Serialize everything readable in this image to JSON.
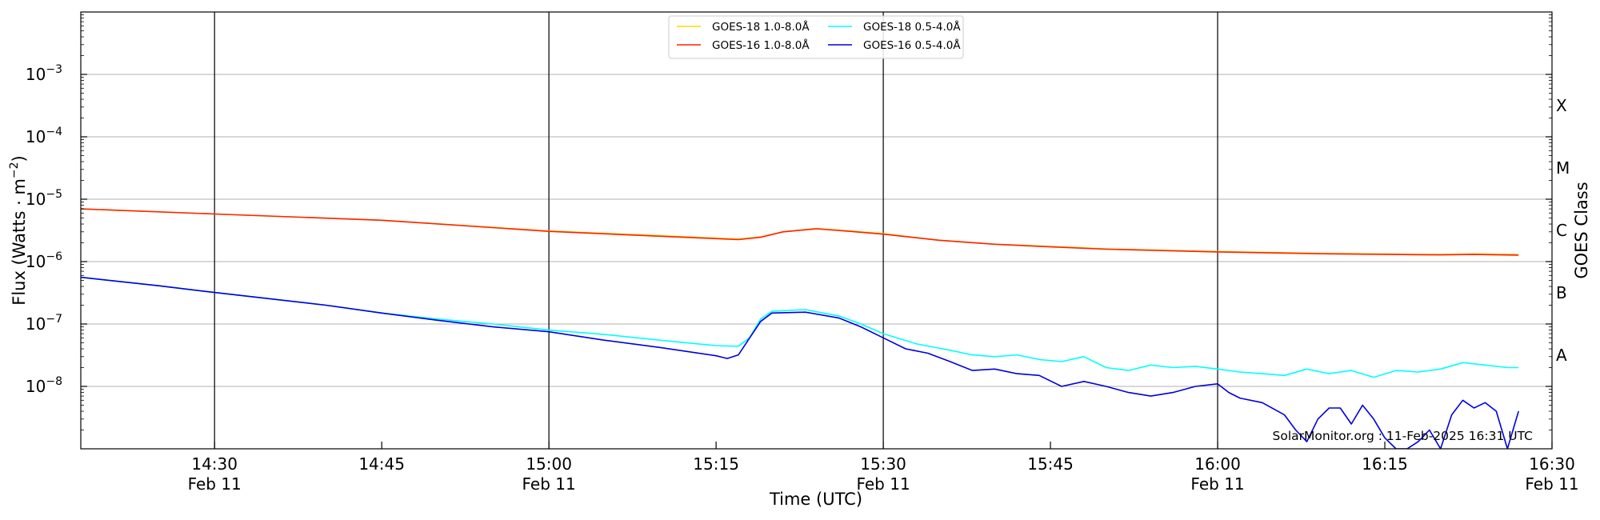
{
  "chart_data": {
    "type": "line",
    "xlabel": "Time (UTC)",
    "ylabel_main": "Flux (Watts · m",
    "ylabel_sup": "−2",
    "ylabel_close": ")",
    "y2label": "GOES Class",
    "yscale": "log",
    "xlim": [
      "14:18",
      "16:30"
    ],
    "ylim": [
      1e-09,
      0.01
    ],
    "grid": "horizontal at decades",
    "legend_position": "top-center",
    "credit": "SolarMonitor.org : 11-Feb-2025 16:31 UTC",
    "xticks": [
      {
        "t": "14:30",
        "time": "14:30",
        "date": "Feb 11",
        "day_line": true
      },
      {
        "t": "14:45",
        "time": "14:45",
        "date": "",
        "day_line": false
      },
      {
        "t": "15:00",
        "time": "15:00",
        "date": "Feb 11",
        "day_line": true
      },
      {
        "t": "15:15",
        "time": "15:15",
        "date": "",
        "day_line": false
      },
      {
        "t": "15:30",
        "time": "15:30",
        "date": "Feb 11",
        "day_line": true
      },
      {
        "t": "15:45",
        "time": "15:45",
        "date": "",
        "day_line": false
      },
      {
        "t": "16:00",
        "time": "16:00",
        "date": "Feb 11",
        "day_line": true
      },
      {
        "t": "16:15",
        "time": "16:15",
        "date": "",
        "day_line": false
      },
      {
        "t": "16:30",
        "time": "16:30",
        "date": "Feb 11",
        "day_line": false
      }
    ],
    "yticks": [
      {
        "value": 1e-08,
        "base": "10",
        "exp": "−8"
      },
      {
        "value": 1e-07,
        "base": "10",
        "exp": "−7"
      },
      {
        "value": 1e-06,
        "base": "10",
        "exp": "−6"
      },
      {
        "value": 1e-05,
        "base": "10",
        "exp": "−5"
      },
      {
        "value": 0.0001,
        "base": "10",
        "exp": "−4"
      },
      {
        "value": 0.001,
        "base": "10",
        "exp": "−3"
      }
    ],
    "goes_classes": [
      {
        "label": "A",
        "value": 3.16e-08
      },
      {
        "label": "B",
        "value": 3.16e-07
      },
      {
        "label": "C",
        "value": 3.16e-06
      },
      {
        "label": "M",
        "value": 3.16e-05
      },
      {
        "label": "X",
        "value": 0.000316
      }
    ],
    "series": [
      {
        "name": "GOES-18 1.0-8.0Å",
        "color": "#ffd700",
        "points": [
          [
            "14:18",
            7e-06
          ],
          [
            "14:30",
            5.8e-06
          ],
          [
            "14:45",
            4.6e-06
          ],
          [
            "15:00",
            3.1e-06
          ],
          [
            "15:10",
            2.6e-06
          ],
          [
            "15:17",
            2.3e-06
          ],
          [
            "15:19",
            2.5e-06
          ],
          [
            "15:21",
            3e-06
          ],
          [
            "15:24",
            3.4e-06
          ],
          [
            "15:27",
            3.1e-06
          ],
          [
            "15:30",
            2.8e-06
          ],
          [
            "15:35",
            2.2e-06
          ],
          [
            "15:40",
            1.9e-06
          ],
          [
            "15:45",
            1.75e-06
          ],
          [
            "15:50",
            1.6e-06
          ],
          [
            "16:00",
            1.45e-06
          ],
          [
            "16:10",
            1.35e-06
          ],
          [
            "16:20",
            1.3e-06
          ],
          [
            "16:23",
            1.33e-06
          ],
          [
            "16:27",
            1.3e-06
          ]
        ]
      },
      {
        "name": "GOES-16 1.0-8.0Å",
        "color": "#ff2200",
        "points": [
          [
            "14:18",
            7e-06
          ],
          [
            "14:30",
            5.8e-06
          ],
          [
            "14:45",
            4.6e-06
          ],
          [
            "15:00",
            3.05e-06
          ],
          [
            "15:10",
            2.55e-06
          ],
          [
            "15:17",
            2.25e-06
          ],
          [
            "15:19",
            2.45e-06
          ],
          [
            "15:21",
            3e-06
          ],
          [
            "15:24",
            3.35e-06
          ],
          [
            "15:27",
            3.05e-06
          ],
          [
            "15:30",
            2.75e-06
          ],
          [
            "15:35",
            2.2e-06
          ],
          [
            "15:40",
            1.9e-06
          ],
          [
            "15:45",
            1.72e-06
          ],
          [
            "15:50",
            1.58e-06
          ],
          [
            "16:00",
            1.43e-06
          ],
          [
            "16:10",
            1.33e-06
          ],
          [
            "16:20",
            1.28e-06
          ],
          [
            "16:23",
            1.3e-06
          ],
          [
            "16:27",
            1.27e-06
          ]
        ]
      },
      {
        "name": "GOES-18 0.5-4.0Å",
        "color": "#00ffff",
        "points": [
          [
            "14:18",
            5.6e-07
          ],
          [
            "14:25",
            4.1e-07
          ],
          [
            "14:30",
            3.2e-07
          ],
          [
            "14:40",
            2e-07
          ],
          [
            "14:45",
            1.5e-07
          ],
          [
            "14:50",
            1.2e-07
          ],
          [
            "14:55",
            1e-07
          ],
          [
            "15:00",
            8e-08
          ],
          [
            "15:05",
            6.8e-08
          ],
          [
            "15:10",
            5.5e-08
          ],
          [
            "15:15",
            4.5e-08
          ],
          [
            "15:17",
            4.4e-08
          ],
          [
            "15:18",
            6e-08
          ],
          [
            "15:19",
            1.2e-07
          ],
          [
            "15:20",
            1.6e-07
          ],
          [
            "15:23",
            1.7e-07
          ],
          [
            "15:26",
            1.35e-07
          ],
          [
            "15:28",
            1e-07
          ],
          [
            "15:30",
            7e-08
          ],
          [
            "15:33",
            4.8e-08
          ],
          [
            "15:36",
            3.8e-08
          ],
          [
            "15:38",
            3.2e-08
          ],
          [
            "15:40",
            3e-08
          ],
          [
            "15:42",
            3.2e-08
          ],
          [
            "15:44",
            2.7e-08
          ],
          [
            "15:46",
            2.5e-08
          ],
          [
            "15:48",
            3e-08
          ],
          [
            "15:50",
            2e-08
          ],
          [
            "15:52",
            1.8e-08
          ],
          [
            "15:54",
            2.2e-08
          ],
          [
            "15:56",
            2e-08
          ],
          [
            "15:58",
            2.1e-08
          ],
          [
            "16:00",
            1.9e-08
          ],
          [
            "16:02",
            1.7e-08
          ],
          [
            "16:04",
            1.6e-08
          ],
          [
            "16:06",
            1.5e-08
          ],
          [
            "16:08",
            1.9e-08
          ],
          [
            "16:10",
            1.6e-08
          ],
          [
            "16:12",
            1.8e-08
          ],
          [
            "16:14",
            1.4e-08
          ],
          [
            "16:16",
            1.8e-08
          ],
          [
            "16:18",
            1.7e-08
          ],
          [
            "16:20",
            1.9e-08
          ],
          [
            "16:22",
            2.4e-08
          ],
          [
            "16:24",
            2.2e-08
          ],
          [
            "16:26",
            2e-08
          ],
          [
            "16:27",
            2e-08
          ]
        ]
      },
      {
        "name": "GOES-16 0.5-4.0Å",
        "color": "#0000dd",
        "points": [
          [
            "14:18",
            5.6e-07
          ],
          [
            "14:25",
            4.1e-07
          ],
          [
            "14:30",
            3.2e-07
          ],
          [
            "14:40",
            2e-07
          ],
          [
            "14:45",
            1.5e-07
          ],
          [
            "14:50",
            1.15e-07
          ],
          [
            "14:55",
            9e-08
          ],
          [
            "15:00",
            7.5e-08
          ],
          [
            "15:05",
            5.5e-08
          ],
          [
            "15:10",
            4.2e-08
          ],
          [
            "15:15",
            3.1e-08
          ],
          [
            "15:16",
            2.8e-08
          ],
          [
            "15:17",
            3.2e-08
          ],
          [
            "15:19",
            1.1e-07
          ],
          [
            "15:20",
            1.5e-07
          ],
          [
            "15:23",
            1.55e-07
          ],
          [
            "15:26",
            1.25e-07
          ],
          [
            "15:28",
            9e-08
          ],
          [
            "15:30",
            6e-08
          ],
          [
            "15:32",
            4e-08
          ],
          [
            "15:34",
            3.4e-08
          ],
          [
            "15:36",
            2.5e-08
          ],
          [
            "15:38",
            1.8e-08
          ],
          [
            "15:40",
            1.9e-08
          ],
          [
            "15:42",
            1.6e-08
          ],
          [
            "15:44",
            1.5e-08
          ],
          [
            "15:46",
            1e-08
          ],
          [
            "15:48",
            1.2e-08
          ],
          [
            "15:50",
            1e-08
          ],
          [
            "15:52",
            8e-09
          ],
          [
            "15:54",
            7e-09
          ],
          [
            "15:56",
            8e-09
          ],
          [
            "15:58",
            1e-08
          ],
          [
            "16:00",
            1.1e-08
          ],
          [
            "16:01",
            8e-09
          ],
          [
            "16:02",
            6.5e-09
          ],
          [
            "16:04",
            5.5e-09
          ],
          [
            "16:06",
            3.5e-09
          ],
          [
            "16:07",
            2e-09
          ],
          [
            "16:08",
            1.3e-09
          ],
          [
            "16:09",
            3e-09
          ],
          [
            "16:10",
            4.5e-09
          ],
          [
            "16:11",
            4.5e-09
          ],
          [
            "16:12",
            2.5e-09
          ],
          [
            "16:13",
            5e-09
          ],
          [
            "16:14",
            3e-09
          ],
          [
            "16:15",
            1.5e-09
          ],
          [
            "16:16",
            1e-09
          ],
          [
            "16:17",
            1e-09
          ],
          [
            "16:18",
            1.3e-09
          ],
          [
            "16:19",
            2e-09
          ],
          [
            "16:20",
            1e-09
          ],
          [
            "16:21",
            3.5e-09
          ],
          [
            "16:22",
            6e-09
          ],
          [
            "16:23",
            4.5e-09
          ],
          [
            "16:24",
            5.5e-09
          ],
          [
            "16:25",
            4e-09
          ],
          [
            "16:26",
            1e-09
          ],
          [
            "16:27",
            4e-09
          ]
        ]
      }
    ]
  }
}
